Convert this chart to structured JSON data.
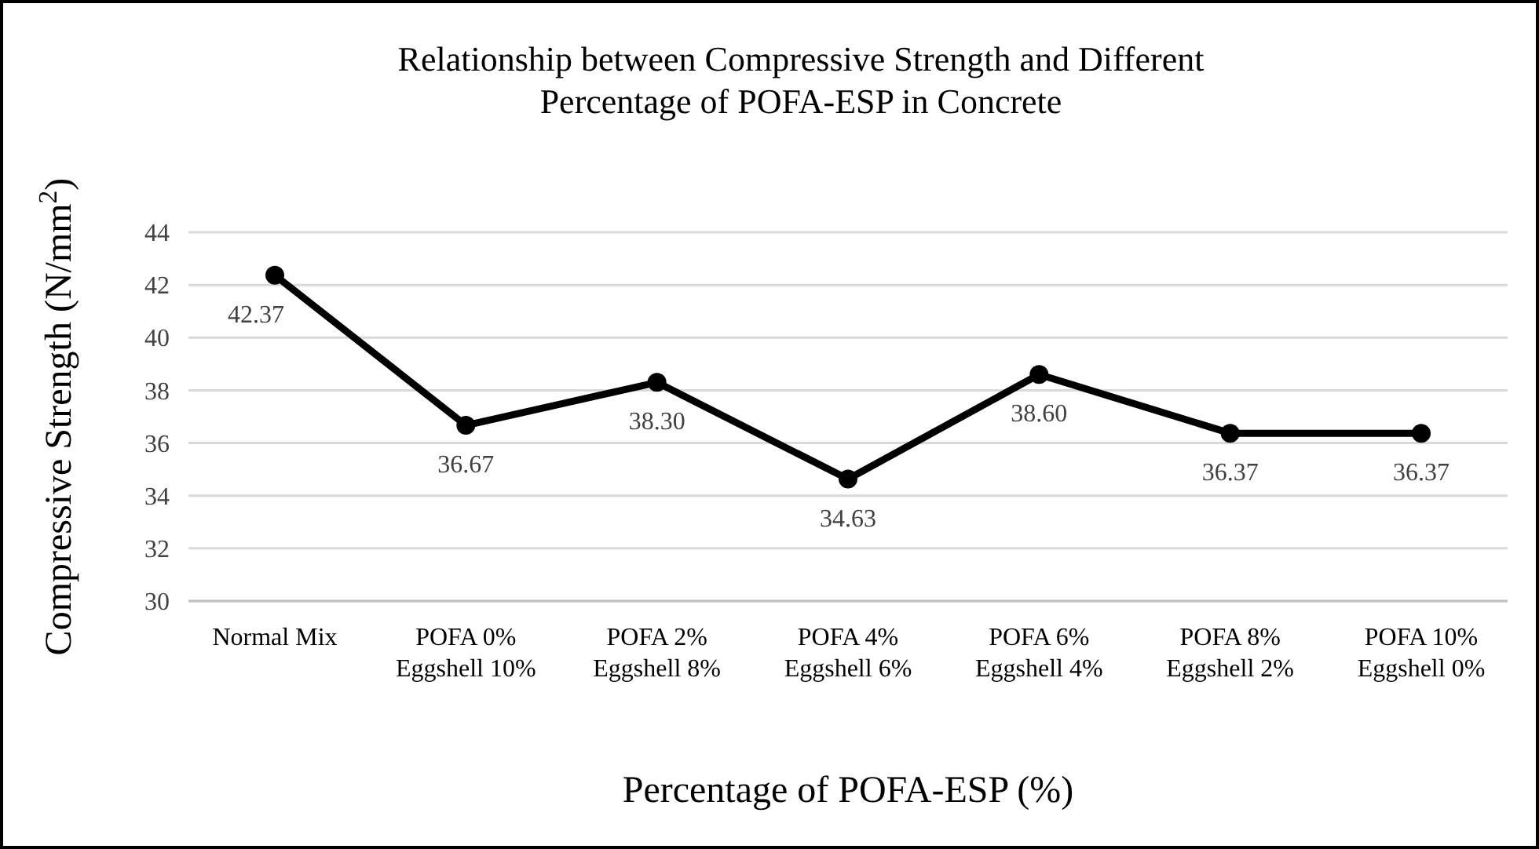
{
  "chart_data": {
    "type": "line",
    "title": "Relationship between Compressive Strength and Different Percentage of POFA-ESP in Concrete",
    "xlabel": "Percentage of POFA-ESP (%)",
    "ylabel": "Compressive Strength (N/mm$^{2}$)",
    "categories": [
      "Normal Mix",
      "POFA 0% Eggshell 10%",
      "POFA 2% Eggshell 8%",
      "POFA 4% Eggshell 6%",
      "POFA 6% Eggshell 4%",
      "POFA 8% Eggshell 2%",
      "POFA 10% Eggshell 0%"
    ],
    "series": [
      {
        "color": "#000000",
        "values": [
          42.37,
          36.67,
          38.3,
          34.63,
          38.6,
          36.37,
          36.37
        ],
        "value_labels": [
          "42.37",
          "36.67",
          "38.30",
          "34.63",
          "38.60",
          "36.37",
          "36.37"
        ]
      }
    ],
    "ylim": [
      30,
      44
    ],
    "yticks": [
      30,
      32,
      34,
      36,
      38,
      40,
      42,
      44
    ],
    "grid": "y",
    "marker": "circle",
    "line_style": "solid"
  }
}
